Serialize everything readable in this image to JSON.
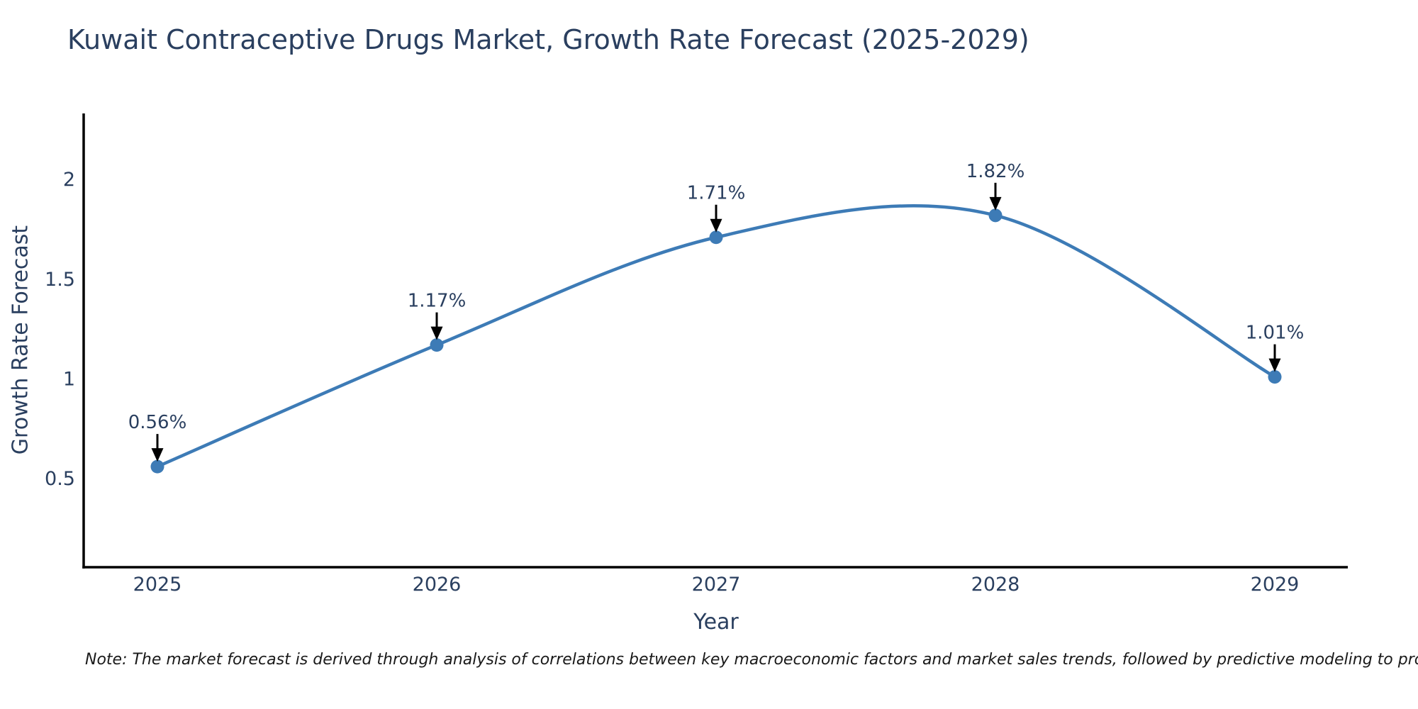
{
  "title": "Kuwait Contraceptive Drugs Market, Growth Rate Forecast (2025-2029)",
  "note": {
    "text": "Note: The market forecast is derived through analysis of correlations between key macroeconomic factors and market sales trends, followed by predictive modeling to project future sales"
  },
  "chart_data": {
    "type": "line",
    "title": "Kuwait Contraceptive Drugs Market, Growth Rate Forecast (2025-2029)",
    "xlabel": "Year",
    "ylabel": "Growth Rate Forecast",
    "categories": [
      "2025",
      "2026",
      "2027",
      "2028",
      "2029"
    ],
    "series": [
      {
        "name": "Growth Rate Forecast",
        "values": [
          0.56,
          1.17,
          1.71,
          1.82,
          1.01
        ]
      }
    ],
    "point_labels": [
      "0.56%",
      "1.17%",
      "1.71%",
      "1.82%",
      "1.01%"
    ],
    "ytick_labels": [
      "0.5",
      "1",
      "1.5",
      "2"
    ],
    "ytick_values": [
      0.5,
      1,
      1.5,
      2
    ],
    "ylim": [
      0.05,
      2.33
    ],
    "line_shape": "spline",
    "grid": false,
    "legend_position": "none",
    "colors": {
      "line": "#3d7bb6",
      "marker": "#3d7bb6",
      "arrow": "#000000",
      "axis": "#000000",
      "text": "#2a3f5f"
    }
  }
}
